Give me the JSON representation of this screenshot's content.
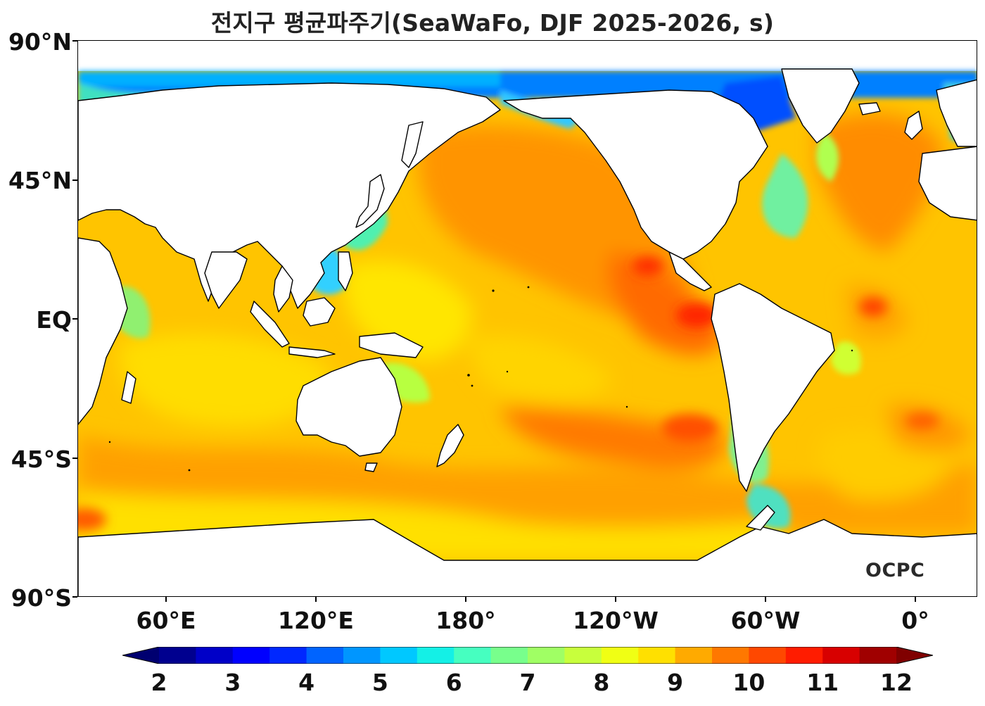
{
  "title": "전지구 평균파주기(SeaWaFo, DJF 2025-2026, s)",
  "logo": "OCPC",
  "lat_labels": [
    "90°N",
    "45°N",
    "EQ",
    "45°S",
    "90°S"
  ],
  "lon_labels": [
    "60°E",
    "120°E",
    "180°",
    "120°W",
    "60°W",
    "0°"
  ],
  "colorbar": {
    "ticks": [
      "2",
      "3",
      "4",
      "5",
      "6",
      "7",
      "8",
      "9",
      "10",
      "11",
      "12"
    ],
    "colors": [
      "#00008f",
      "#0000c8",
      "#0000ff",
      "#0028ff",
      "#0064ff",
      "#0096ff",
      "#00c8ff",
      "#14f0e6",
      "#46ffc0",
      "#78ff8c",
      "#a0ff64",
      "#c8ff3c",
      "#f0ff14",
      "#ffe000",
      "#ffaa00",
      "#ff7800",
      "#ff4800",
      "#ff1c00",
      "#d80000",
      "#a00000"
    ],
    "under_color": "#000070",
    "over_color": "#800000"
  }
}
